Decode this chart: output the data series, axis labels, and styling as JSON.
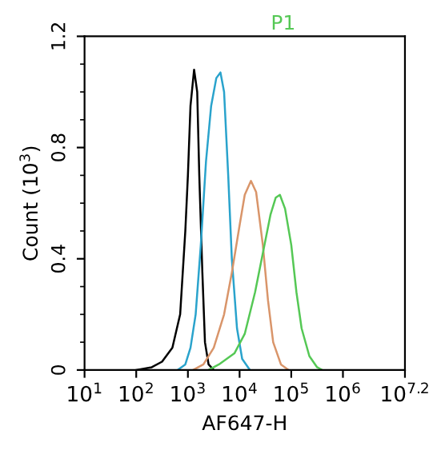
{
  "chart_data": {
    "type": "line",
    "title": "P1",
    "xlabel": "AF647-H",
    "ylabel": "Count (10$^{3}$)",
    "log": "x",
    "grid": false,
    "legend": false,
    "marker": "none",
    "line_style": "solid",
    "xlim": [
      10,
      15848932
    ],
    "ylim": [
      0,
      1.2
    ],
    "xticks": [
      {
        "value": 10,
        "label": "10$^{1}$"
      },
      {
        "value": 100,
        "label": "10$^{2}$"
      },
      {
        "value": 1000,
        "label": "10$^{3}$"
      },
      {
        "value": 10000,
        "label": "10$^{4}$"
      },
      {
        "value": 100000,
        "label": "10$^{5}$"
      },
      {
        "value": 1000000,
        "label": "10$^{6}$"
      },
      {
        "value": 15848932,
        "label": "10$^{7.2}$"
      }
    ],
    "yticks": [
      0,
      0.4,
      0.8,
      1.2
    ],
    "series": [
      {
        "color": "#000000",
        "x": [
          100,
          200,
          316,
          501,
          708,
          891,
          1000,
          1122,
          1318,
          1514,
          1660,
          1905,
          2138,
          2512,
          3162
        ],
        "values": [
          0,
          0.01,
          0.03,
          0.08,
          0.2,
          0.5,
          0.7,
          0.95,
          1.08,
          1.0,
          0.7,
          0.35,
          0.1,
          0.02,
          0
        ]
      },
      {
        "color": "#2aa3cc",
        "x": [
          631,
          891,
          1122,
          1413,
          1778,
          2239,
          2818,
          3548,
          4266,
          5012,
          6026,
          7079,
          8913,
          11220,
          15850
        ],
        "values": [
          0,
          0.02,
          0.08,
          0.2,
          0.45,
          0.75,
          0.95,
          1.05,
          1.07,
          1.0,
          0.7,
          0.4,
          0.15,
          0.04,
          0
        ]
      },
      {
        "color": "#d9956a",
        "x": [
          1259,
          1995,
          3162,
          5012,
          7079,
          10000,
          12590,
          16600,
          20890,
          28180,
          35480,
          44670,
          63100,
          89130
        ],
        "values": [
          0,
          0.02,
          0.08,
          0.2,
          0.35,
          0.52,
          0.63,
          0.68,
          0.64,
          0.45,
          0.25,
          0.1,
          0.02,
          0
        ]
      },
      {
        "color": "#55c855",
        "x": [
          2512,
          3981,
          7943,
          12590,
          19950,
          28180,
          39810,
          50120,
          60260,
          75860,
          100000,
          125900,
          158500,
          223900,
          316200,
          398100
        ],
        "values": [
          0,
          0.02,
          0.06,
          0.13,
          0.28,
          0.42,
          0.56,
          0.62,
          0.63,
          0.58,
          0.45,
          0.28,
          0.15,
          0.05,
          0.01,
          0
        ]
      }
    ]
  }
}
